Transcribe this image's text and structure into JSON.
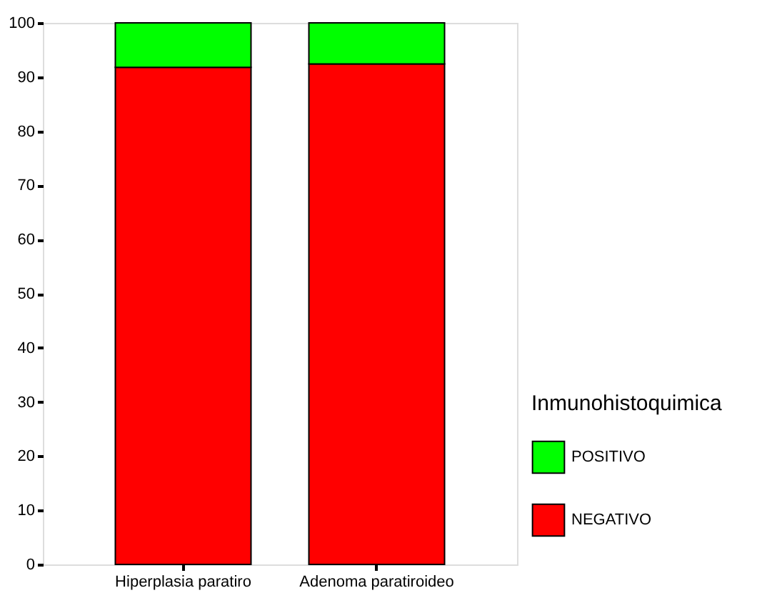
{
  "chart_data": {
    "type": "bar",
    "stacked": true,
    "categories": [
      "Hiperplasia paratiro",
      "Adenoma paratiroideo"
    ],
    "series": [
      {
        "name": "NEGATIVO",
        "color": "#ff0000",
        "values": [
          91.8,
          92.4
        ]
      },
      {
        "name": "POSITIVO",
        "color": "#00ff00",
        "values": [
          8.2,
          7.6
        ]
      }
    ],
    "legend_title": "Inmunohistoquimica",
    "legend": "right",
    "ylim": [
      0,
      100
    ],
    "yticks": [
      0,
      10,
      20,
      30,
      40,
      50,
      60,
      70,
      80,
      90,
      100
    ],
    "grid": false
  }
}
